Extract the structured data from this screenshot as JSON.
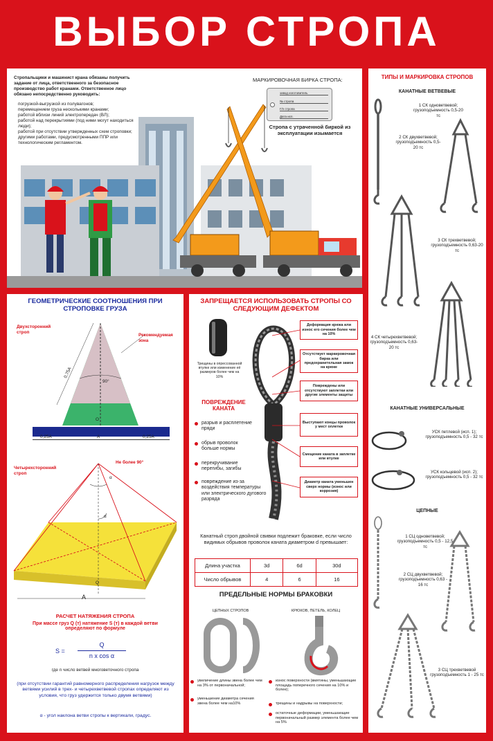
{
  "title": "ВЫБОР СТРОПА",
  "intro": {
    "lead": "Стропальщики и машинист крана обязаны получить задание от лица, ответственного за безопасное производство работ кранами. Ответственное лицо обязано непосредственно руководить:",
    "items": [
      "погрузкой-выгрузкой из полувагонов;",
      "перемещением груза несколькими кранами;",
      "работой вблизи линий электропередач (ВЛ);",
      "работой над перекрытиями (под ними могут находиться люди);",
      "работой при отсутствии утвержденных схем строповки;",
      "другими работами, предусмотренными ППР или технологическим регламентом."
    ]
  },
  "tag": {
    "title": "МАРКИРОВОЧНАЯ БИРКА СТРОПА:",
    "line1": "завод изготовитель",
    "line2": "№ стропа",
    "line3": "Г/п стропа",
    "line4": "Дата исп.",
    "note": "Стропа с утраченной биркой из эксплуатации изымается"
  },
  "geometry": {
    "title": "ГЕОМЕТРИЧЕСКИЕ СООТНОШЕНИЯ ПРИ СТРОПОВКЕ ГРУЗА",
    "two_leg": "Двухсторонний строп",
    "zone": "Рекомендуемая зона",
    "angle90": "90°",
    "size075": "0,75А",
    "size025": "0,25А",
    "a": "A",
    "o": "О",
    "four_leg": "Четырехсторонний строп",
    "max90": "Не более 90°",
    "alpha": "α",
    "q": "Q",
    "tension_title": "РАСЧЕТ НАТЯЖЕНИЯ СТРОПА",
    "tension_text": "При массе груз Q (т) натяжение S (т) в каждой ветви определяют по формуле",
    "s_eq": "S =",
    "numerator": "Q",
    "denominator": "n x cos α",
    "n_def": "где n число ветвей многоветочного стропа",
    "note": "(при отсутствии гарантий равномерного распределения нагрузок между ветвями усилий в трех- и четырехветвевой стропах определяют из условия, что груз удержится только двумя ветвями)",
    "alpha_def": "α - угол наклона ветви стропы к вертикали, градус."
  },
  "defects": {
    "title": "ЗАПРЕЩАЕТСЯ ИСПОЛЬЗОВАТЬ СТРОПЫ СО СЛЕДУЮЩИМ ДЕФЕКТОМ",
    "sleeve_note": "Трещины в опрессованной втулке или изменение её размеров более чем на 10%",
    "damage_title": "ПОВРЕЖДЕНИЕ КАНАТА",
    "damage_items": [
      "разрыв и расплетение пряди",
      "обрыв проволок больше нормы",
      "перекручивание перегибы, загибы",
      "повреждение из-за воздействия температуры или электрического дугового разряда"
    ],
    "boxes": [
      "Деформация крюка или износ его сечения более чем на 10%",
      "Отсутствует маркировочная бирка или предохранительная замок на крюке",
      "Повреждены или отсутствуют заплетки или другие элементы защиты",
      "Выступают концы проволок у мест оплетки",
      "Смещение каната в заплетке или втулке",
      "Диаметр каната уменьшен сверх нормы (износ или коррозия)"
    ],
    "reject_text": "Канатный строп двойной свивки подлежит браковке, если число видимых обрывов проволок каната диаметром d превышает:",
    "table": {
      "row1_label": "Длина участка",
      "row1": [
        "3d",
        "6d",
        "30d"
      ],
      "row2_label": "Число обрывов",
      "row2": [
        "4",
        "6",
        "16"
      ]
    }
  },
  "limits": {
    "title": "ПРЕДЕЛЬНЫЕ НОРМЫ БРАКОВКИ",
    "chain_title": "ЦЕПНЫХ СТРОПОВ",
    "hook_title": "КРЮКОВ, ПЕТЕЛЬ, КОЛЕЦ",
    "chain_items": [
      "увеличение длины звена более чем на 3% от первоначальной;",
      "уменьшение диаметра сечения звена более чем на10%"
    ],
    "hook_items": [
      "износ поверхности (вмятины, уменьшающие площадь поперечного сечения на 10% и более);",
      "трещины и надрывы на поверхности;",
      "остаточные деформации, уменьшающие первоначальный размер элемента более чем на 5%"
    ]
  },
  "types": {
    "title": "ТИПЫ И МАРКИРОВКА СТРОПОВ",
    "rope_branch": "КАНАТНЫЕ ВЕТВЕВЫЕ",
    "sk1": "1 СК одноветвевой; грузоподъемность 0,5-20 тс",
    "sk2": "2 СК двухветвевой; грузоподъемность 0,5-20 тс",
    "sk3": "3 СК трехветвевой; грузоподъемность 0,63-20 тс",
    "sk4": "4 СК четырехветвевой; грузоподъемность 0,63-20 тс",
    "rope_universal": "КАНАТНЫЕ УНИВЕРСАЛЬНЫЕ",
    "usk1": "УСК петлевой (исп. 1); грузоподъемность 0,5 - 32 тс",
    "usk2": "УСК кольцевой (исп. 2); грузоподъемность 0,5 - 32 тс",
    "chain": "ЦЕПНЫЕ",
    "sc1": "1 СЦ одноветвевой; грузоподъемность 0,5 - 12,5 тс",
    "sc2": "2 СЦ двухветвевой; грузоподъемность 0,63 - 16 тс",
    "sc3": "3 СЦ трехветвевой грузоподъемность 1 - 25 тс"
  },
  "colors": {
    "brand_red": "#d9121b",
    "crane_orange": "#f39a1b",
    "load_yellow": "#f5e13a",
    "formula_blue": "#1a2a9e"
  }
}
